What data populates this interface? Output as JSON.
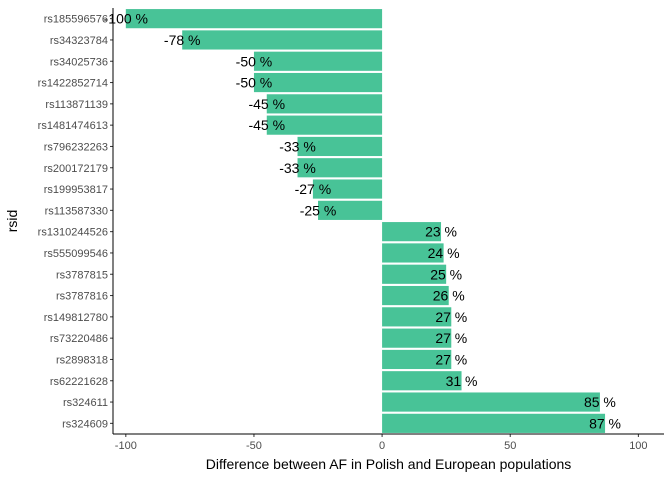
{
  "chart_data": {
    "type": "bar",
    "orientation": "horizontal",
    "xlabel": "Difference between AF in Polish and European populations",
    "ylabel": "rsid",
    "xlim": [
      -105,
      110
    ],
    "xticks": [
      -100,
      -50,
      0,
      50,
      100
    ],
    "label_suffix": " %",
    "grid": false,
    "colors": {
      "bar": "#48C397",
      "axis": "#000000"
    },
    "categories": [
      "rs185596576",
      "rs34323784",
      "rs34025736",
      "rs1422852714",
      "rs113871139",
      "rs1481474613",
      "rs796232263",
      "rs200172179",
      "rs199953817",
      "rs113587330",
      "rs1310244526",
      "rs555099546",
      "rs3787815",
      "rs3787816",
      "rs149812780",
      "rs73220486",
      "rs2898318",
      "rs62221628",
      "rs324611",
      "rs324609"
    ],
    "values": [
      -100,
      -78,
      -50,
      -50,
      -45,
      -45,
      -33,
      -33,
      -27,
      -25,
      23,
      24,
      25,
      26,
      27,
      27,
      27,
      31,
      85,
      87
    ]
  }
}
